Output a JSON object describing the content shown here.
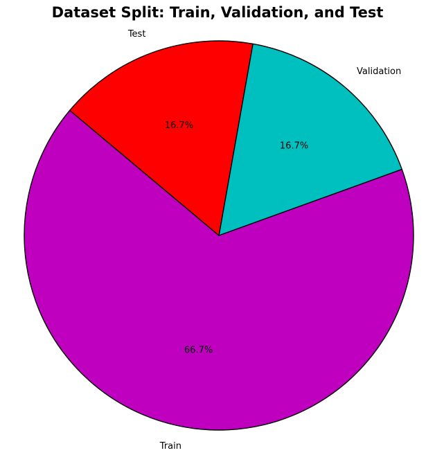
{
  "chart_data": {
    "type": "pie",
    "title": "Dataset Split: Train, Validation, and Test",
    "start_angle_deg": 140,
    "direction": "counterclockwise",
    "slices": [
      {
        "label": "Train",
        "value": 66.7,
        "pct_label": "66.7%",
        "color": "#bf00bf"
      },
      {
        "label": "Validation",
        "value": 16.7,
        "pct_label": "16.7%",
        "color": "#00bfbf"
      },
      {
        "label": "Test",
        "value": 16.7,
        "pct_label": "16.7%",
        "color": "#ff0000"
      }
    ],
    "edge_color": "#000000"
  }
}
